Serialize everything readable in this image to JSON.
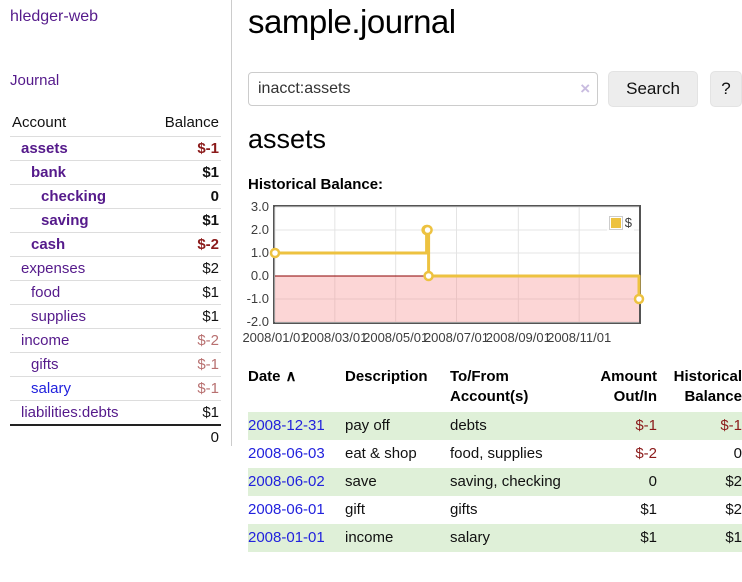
{
  "app": {
    "brand": "hledger-web"
  },
  "palette": {
    "link_purple": "#551A8B",
    "link_blue": "#2222DD",
    "negative_strong": "#8B1A1A",
    "negative_soft": "#B87070",
    "row_stripe_green": "#DFF0D8",
    "series_yellow": "#EDC240",
    "negative_region_pink": "#FBD7D7",
    "zero_line_red": "#8B0000"
  },
  "sidebar": {
    "nav_journal": "Journal",
    "accounts": {
      "header_account": "Account",
      "header_balance": "Balance",
      "rows": [
        {
          "name": "assets",
          "depth": 1,
          "bold": true,
          "balance": "$-1"
        },
        {
          "name": "bank",
          "depth": 2,
          "bold": true,
          "balance": "$1"
        },
        {
          "name": "checking",
          "depth": 3,
          "bold": true,
          "balance": "0"
        },
        {
          "name": "saving",
          "depth": 3,
          "bold": true,
          "balance": "$1"
        },
        {
          "name": "cash",
          "depth": 2,
          "bold": true,
          "balance": "$-2"
        },
        {
          "name": "expenses",
          "depth": 1,
          "bold": false,
          "balance": "$2"
        },
        {
          "name": "food",
          "depth": 2,
          "bold": false,
          "balance": "$1"
        },
        {
          "name": "supplies",
          "depth": 2,
          "bold": false,
          "balance": "$1"
        },
        {
          "name": "income",
          "depth": 1,
          "bold": false,
          "balance": "$-2"
        },
        {
          "name": "gifts",
          "depth": 2,
          "bold": false,
          "balance": "$-1"
        },
        {
          "name": "salary",
          "depth": 2,
          "bold": false,
          "balance": "$-1",
          "link_color": "blue"
        },
        {
          "name": "liabilities:debts",
          "depth": 1,
          "bold": false,
          "balance": "$1"
        }
      ],
      "total": "0"
    }
  },
  "main": {
    "title": "sample.journal",
    "search": {
      "value": "inacct:assets",
      "clear_icon": "×",
      "button_label": "Search",
      "help_label": "?"
    },
    "account_heading": "assets",
    "register": {
      "headers": {
        "date": "Date",
        "sort_icon": "∧",
        "description": "Description",
        "accounts": "To/From Account(s)",
        "amount": "Amount Out/In",
        "balance": "Historical Balance"
      },
      "rows": [
        {
          "date": "2008-12-31",
          "description": "pay off",
          "accounts": "debts",
          "amount": "$-1",
          "balance": "$-1"
        },
        {
          "date": "2008-06-03",
          "description": "eat & shop",
          "accounts": "food, supplies",
          "amount": "$-2",
          "balance": "0"
        },
        {
          "date": "2008-06-02",
          "description": "save",
          "accounts": "saving, checking",
          "amount": "0",
          "balance": "$2"
        },
        {
          "date": "2008-06-01",
          "description": "gift",
          "accounts": "gifts",
          "amount": "$1",
          "balance": "$2"
        },
        {
          "date": "2008-01-01",
          "description": "income",
          "accounts": "salary",
          "amount": "$1",
          "balance": "$1"
        }
      ]
    }
  },
  "chart_data": {
    "type": "line",
    "title": "Historical Balance:",
    "steps": true,
    "legend_position": "top-right",
    "series": [
      {
        "name": "$",
        "color": "#EDC240",
        "points": [
          [
            "2008-01-01",
            1
          ],
          [
            "2008-06-01",
            2
          ],
          [
            "2008-06-02",
            2
          ],
          [
            "2008-06-03",
            0
          ],
          [
            "2008-12-31",
            -1
          ]
        ]
      }
    ],
    "xlim": [
      "2008-01-01",
      "2008-12-31"
    ],
    "ylim": [
      -2,
      3
    ],
    "x_ticks": [
      {
        "x": "2008-01-01",
        "label": "2008/01/01"
      },
      {
        "x": "2008-03-01",
        "label": "2008/03/01"
      },
      {
        "x": "2008-05-01",
        "label": "2008/05/01"
      },
      {
        "x": "2008-07-01",
        "label": "2008/07/01"
      },
      {
        "x": "2008-09-01",
        "label": "2008/09/01"
      },
      {
        "x": "2008-11-01",
        "label": "2008/11/01"
      }
    ],
    "y_ticks": [
      {
        "v": 3,
        "label": "3.0"
      },
      {
        "v": 2,
        "label": "2.0"
      },
      {
        "v": 1,
        "label": "1.0"
      },
      {
        "v": 0,
        "label": "0.0"
      },
      {
        "v": -1,
        "label": "-1.0"
      },
      {
        "v": -2,
        "label": "-2.0"
      }
    ],
    "grid": true,
    "negative_region_color": "#FBD7D7",
    "zero_line_color": "#8B0000"
  }
}
